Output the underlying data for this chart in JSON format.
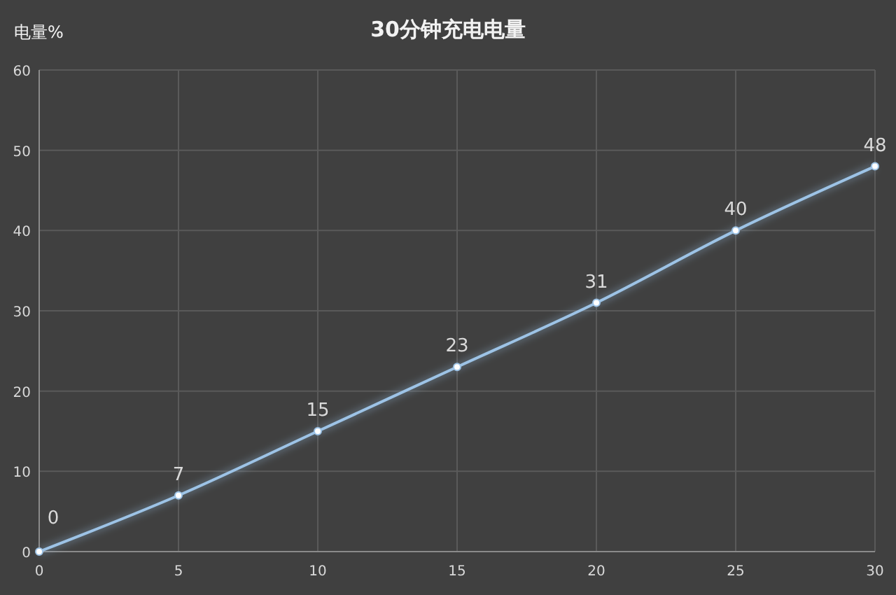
{
  "chart_data": {
    "type": "line",
    "title": "30分钟充电电量",
    "ylabel": "电量%",
    "x": [
      0,
      5,
      10,
      15,
      20,
      25,
      30
    ],
    "series": [
      {
        "color": "#9dc3e6",
        "values": [
          0,
          7,
          15,
          23,
          31,
          40,
          48
        ]
      }
    ],
    "xlim": [
      0,
      30
    ],
    "xticks": [
      0,
      5,
      10,
      15,
      20,
      25,
      30
    ],
    "ylim": [
      0,
      60
    ],
    "yticks": [
      0,
      10,
      20,
      30,
      40,
      50,
      60
    ],
    "grid": true,
    "marker": "circle",
    "line_style": "solid",
    "data_labels": true
  }
}
